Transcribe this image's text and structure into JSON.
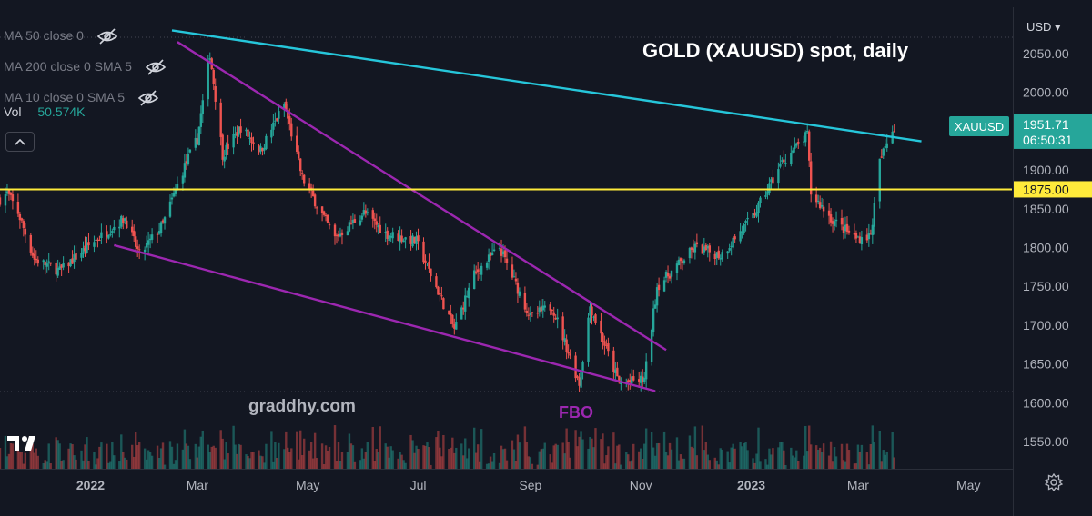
{
  "header": {
    "currency_label": "USD ▾",
    "title": "GOLD (XAUUSD) spot, daily"
  },
  "legend": {
    "indicators": [
      {
        "name": "MA 50 close 0",
        "icon": "eye-off-icon"
      },
      {
        "name": "MA 200 close 0 SMA 5",
        "icon": "eye-off-icon"
      },
      {
        "name": "MA 10 close 0 SMA 5",
        "icon": "eye-off-icon"
      }
    ],
    "volume_label": "Vol",
    "volume_value": "50.574K",
    "collapse_icon": "chevron-up-icon"
  },
  "annotations": {
    "watermark": "graddhy.com",
    "fbo": "FBO"
  },
  "price_tag": {
    "symbol": "XAUUSD",
    "price": "1951.71",
    "countdown": "06:50:31",
    "horizontal_level": "1875.00"
  },
  "colors": {
    "background": "#131722",
    "up": "#26a69a",
    "down": "#ef5350",
    "trend_resistance": "#26c6da",
    "wedge": "#9c27b0",
    "horizontal": "#ffeb3b",
    "tag": "#26a69a"
  },
  "chart_data": {
    "type": "candlestick",
    "title": "GOLD (XAUUSD) spot, daily",
    "symbol": "XAUUSD",
    "timeframe": "daily",
    "y_axis": {
      "ticks": [
        2050,
        2000,
        1950,
        1900,
        1850,
        1800,
        1750,
        1700,
        1650,
        1600,
        1550
      ],
      "tick_labels": [
        "2050.00",
        "2000.00",
        "1950.00",
        "1900.00",
        "1850.00",
        "1800.00",
        "1750.00",
        "1700.00",
        "1650.00",
        "1600.00",
        "1550.00"
      ],
      "range": [
        1530,
        2090
      ]
    },
    "x_axis": {
      "tick_labels": [
        "2022",
        "Mar",
        "May",
        "Jul",
        "Sep",
        "Nov",
        "2023",
        "Mar",
        "May"
      ],
      "tick_dates": [
        "2022-01-01",
        "2022-03-01",
        "2022-05-01",
        "2022-07-01",
        "2022-09-01",
        "2022-11-01",
        "2023-01-01",
        "2023-03-01",
        "2023-05-01"
      ],
      "range": [
        "2021-11-12",
        "2023-05-25"
      ]
    },
    "price_path": [
      [
        "2021-11-12",
        1862
      ],
      [
        "2021-11-16",
        1870
      ],
      [
        "2021-11-22",
        1845
      ],
      [
        "2021-12-01",
        1785
      ],
      [
        "2021-12-15",
        1770
      ],
      [
        "2022-01-04",
        1810
      ],
      [
        "2022-01-20",
        1838
      ],
      [
        "2022-01-28",
        1790
      ],
      [
        "2022-02-10",
        1830
      ],
      [
        "2022-02-22",
        1905
      ],
      [
        "2022-03-01",
        1940
      ],
      [
        "2022-03-08",
        2050
      ],
      [
        "2022-03-15",
        1920
      ],
      [
        "2022-03-25",
        1955
      ],
      [
        "2022-04-05",
        1925
      ],
      [
        "2022-04-18",
        1985
      ],
      [
        "2022-04-28",
        1890
      ],
      [
        "2022-05-16",
        1812
      ],
      [
        "2022-06-01",
        1845
      ],
      [
        "2022-06-13",
        1818
      ],
      [
        "2022-06-30",
        1808
      ],
      [
        "2022-07-21",
        1695
      ],
      [
        "2022-08-01",
        1765
      ],
      [
        "2022-08-15",
        1800
      ],
      [
        "2022-09-01",
        1710
      ],
      [
        "2022-09-13",
        1725
      ],
      [
        "2022-09-28",
        1625
      ],
      [
        "2022-10-04",
        1725
      ],
      [
        "2022-10-20",
        1625
      ],
      [
        "2022-11-03",
        1630
      ],
      [
        "2022-11-10",
        1750
      ],
      [
        "2022-12-01",
        1800
      ],
      [
        "2022-12-15",
        1790
      ],
      [
        "2023-01-02",
        1840
      ],
      [
        "2023-01-18",
        1910
      ],
      [
        "2023-02-01",
        1945
      ],
      [
        "2023-02-03",
        1870
      ],
      [
        "2023-02-15",
        1835
      ],
      [
        "2023-02-28",
        1812
      ],
      [
        "2023-03-08",
        1815
      ],
      [
        "2023-03-13",
        1910
      ],
      [
        "2023-03-20",
        1955
      ],
      [
        "2023-03-21",
        1951.71
      ]
    ],
    "trendlines": [
      {
        "role": "resistance",
        "points": [
          [
            "2022-02-15",
            2080
          ],
          [
            "2023-04-05",
            1937
          ]
        ]
      },
      {
        "role": "wedge-upper",
        "points": [
          [
            "2022-02-18",
            2065
          ],
          [
            "2022-11-15",
            1668
          ]
        ]
      },
      {
        "role": "wedge-lower",
        "points": [
          [
            "2022-01-14",
            1803
          ],
          [
            "2022-11-09",
            1615
          ]
        ]
      },
      {
        "role": "horizontal",
        "points": [
          [
            "2021-11-12",
            1875
          ],
          [
            "2023-05-25",
            1875
          ]
        ]
      }
    ],
    "last_price": 1951.71,
    "horizontal_level": 1875.0,
    "volume": {
      "last": "50.574K"
    }
  }
}
